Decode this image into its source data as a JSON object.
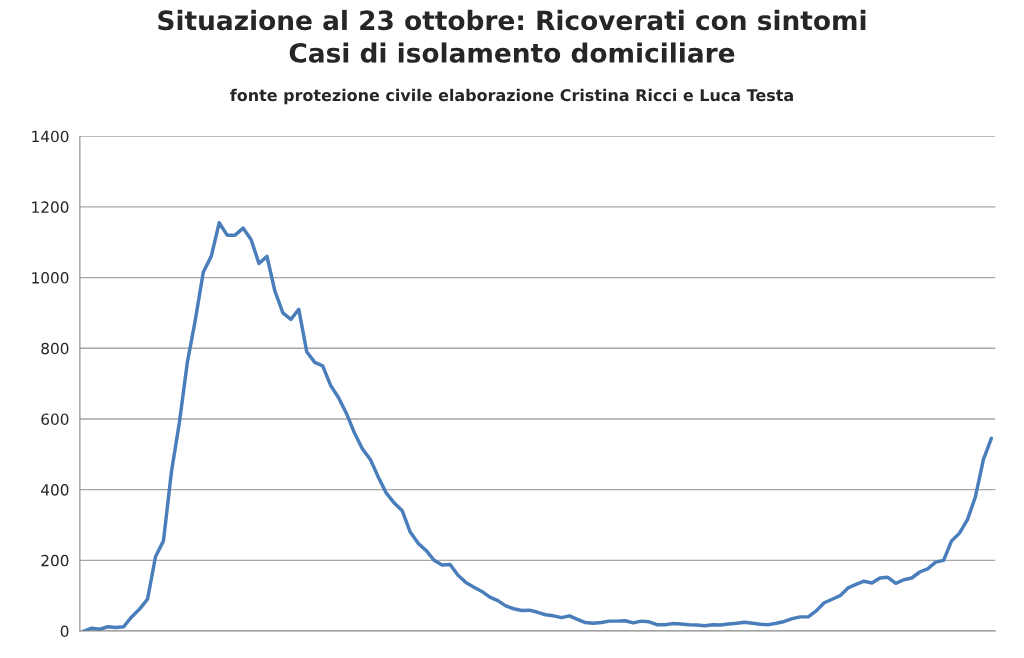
{
  "chart_data": {
    "type": "line",
    "title": "Situazione al 23 ottobre: Ricoverati con sintomi\nCasi di isolamento domiciliare",
    "subtitle": "fonte protezione civile elaborazione Cristina Ricci e Luca Testa",
    "categories": [
      null,
      null,
      null,
      null,
      null,
      null,
      null,
      null,
      null,
      null,
      null,
      null,
      null,
      null,
      null,
      null,
      null,
      null,
      null,
      null,
      null,
      null,
      null,
      null,
      null,
      null,
      null,
      null,
      null,
      null,
      null,
      null,
      null,
      null,
      null,
      null,
      null,
      null,
      null,
      null,
      null,
      null,
      null,
      null,
      null,
      null,
      null,
      null,
      null,
      null,
      null,
      null,
      null,
      null,
      null,
      null,
      null,
      null,
      null,
      null,
      null,
      null,
      null,
      null,
      null,
      null,
      null,
      null,
      null,
      null,
      null,
      null,
      null,
      null,
      null,
      null,
      null,
      null,
      null,
      null,
      null,
      null,
      null,
      null,
      null,
      null,
      null,
      null,
      null,
      null,
      null,
      null,
      null,
      null,
      null,
      null,
      null,
      null,
      null,
      null,
      null,
      null,
      null,
      null,
      null,
      null,
      null,
      null,
      null,
      null,
      null,
      null,
      null,
      null,
      null
    ],
    "series": [
      {
        "color": "#4a7ebb",
        "values": [
          0,
          8,
          5,
          12,
          10,
          12,
          40,
          62,
          90,
          210,
          255,
          450,
          590,
          760,
          880,
          1015,
          1060,
          1155,
          1120,
          1120,
          1140,
          1108,
          1040,
          1060,
          962,
          900,
          882,
          910,
          790,
          760,
          750,
          695,
          660,
          615,
          560,
          515,
          485,
          435,
          390,
          362,
          340,
          280,
          248,
          228,
          200,
          187,
          188,
          158,
          137,
          124,
          112,
          96,
          86,
          71,
          63,
          58,
          59,
          53,
          46,
          43,
          38,
          43,
          33,
          24,
          22,
          24,
          28,
          28,
          29,
          23,
          28,
          26,
          18,
          18,
          21,
          20,
          18,
          17,
          15,
          18,
          17,
          20,
          22,
          25,
          22,
          19,
          18,
          22,
          27,
          35,
          40,
          40,
          57,
          80,
          90,
          100,
          122,
          132,
          141,
          136,
          150,
          152,
          135,
          145,
          150,
          167,
          176,
          195,
          200,
          255,
          277,
          315,
          380,
          485,
          545
        ]
      }
    ],
    "ylim": [
      0,
      1400
    ],
    "yticks": [
      0,
      200,
      400,
      600,
      800,
      1000,
      1200,
      1400
    ],
    "grid": "y",
    "legend": false,
    "marker": "none",
    "line_style": "solid"
  }
}
